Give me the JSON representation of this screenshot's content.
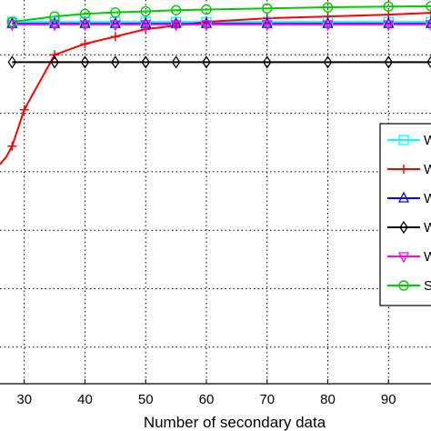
{
  "chart_data": {
    "type": "line",
    "title": "",
    "xlabel": "Number of secondary data",
    "ylabel": "",
    "xlim": [
      26,
      97
    ],
    "xticks": [
      30,
      40,
      50,
      60,
      70,
      80,
      90
    ],
    "xtick_labels": [
      "30",
      "40",
      "50",
      "60",
      "70",
      "80",
      "90"
    ],
    "ylim": [
      0,
      10.5
    ],
    "yticks": [
      1,
      2.6,
      4.2,
      5.8,
      7.4,
      9
    ],
    "grid": true,
    "legend_position": "right",
    "series": [
      {
        "legend_label": "W",
        "color": "#00ffff",
        "marker": "square",
        "x": [
          28,
          35,
          40,
          45,
          50,
          55,
          60,
          70,
          80,
          90,
          97
        ],
        "y": [
          9.9,
          9.9,
          9.9,
          9.9,
          9.9,
          9.9,
          9.9,
          9.9,
          9.9,
          9.9,
          9.9
        ]
      },
      {
        "legend_label": "W",
        "color": "#ff0000",
        "marker": "plus",
        "x": [
          26,
          27,
          28,
          29,
          30,
          35,
          40,
          45,
          50,
          55,
          60,
          70,
          80,
          90,
          97
        ],
        "y": [
          6.0,
          6.2,
          6.5,
          7.0,
          7.5,
          9.0,
          9.3,
          9.5,
          9.7,
          9.8,
          9.9,
          10.0,
          10.05,
          10.1,
          10.15
        ]
      },
      {
        "legend_label": "W",
        "color": "#0000ff",
        "marker": "triangle-up",
        "x": [
          28,
          35,
          40,
          45,
          50,
          55,
          60,
          70,
          80,
          90,
          97
        ],
        "y": [
          9.85,
          9.85,
          9.85,
          9.85,
          9.85,
          9.85,
          9.85,
          9.85,
          9.85,
          9.85,
          9.85
        ]
      },
      {
        "legend_label": "W",
        "color": "#000000",
        "marker": "diamond",
        "x": [
          28,
          35,
          40,
          45,
          50,
          55,
          60,
          70,
          80,
          90,
          97
        ],
        "y": [
          8.8,
          8.8,
          8.8,
          8.8,
          8.8,
          8.8,
          8.8,
          8.8,
          8.8,
          8.8,
          8.8
        ]
      },
      {
        "legend_label": "W",
        "color": "#ff00ff",
        "marker": "triangle-down",
        "x": [
          28,
          35,
          40,
          45,
          50,
          55,
          60,
          70,
          80,
          90,
          97
        ],
        "y": [
          9.83,
          9.83,
          9.83,
          9.83,
          9.83,
          9.83,
          9.83,
          9.83,
          9.83,
          9.83,
          9.83
        ]
      },
      {
        "legend_label": "S",
        "color": "#00cc00",
        "marker": "circle",
        "x": [
          28,
          35,
          40,
          45,
          50,
          55,
          60,
          70,
          80,
          90,
          97
        ],
        "y": [
          9.9,
          10.05,
          10.12,
          10.16,
          10.19,
          10.22,
          10.24,
          10.27,
          10.3,
          10.32,
          10.33
        ]
      }
    ]
  }
}
